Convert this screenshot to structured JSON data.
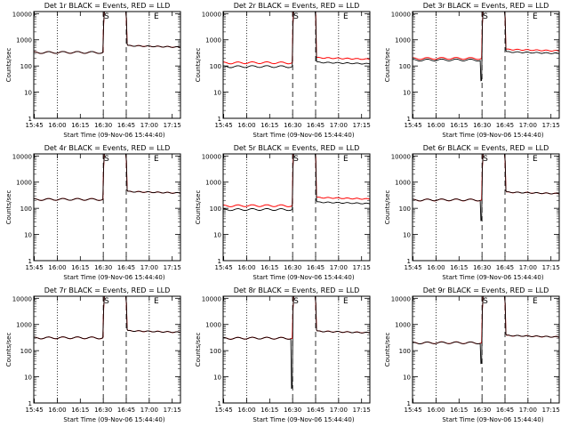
{
  "xlabel": "Start Time (09-Nov-06 15:44:40)",
  "ylabel": "Counts/sec",
  "colors": {
    "events": "#000000",
    "lld": "#ff0000",
    "axis": "#000000"
  },
  "chart_data": [
    {
      "type": "line",
      "title": "Det 1r BLACK = Events, RED = LLD",
      "markers": [
        "S",
        "E"
      ],
      "profile": {
        "pre": 330,
        "post": 520,
        "lldFactor": 1.0,
        "dip": 0
      }
    },
    {
      "type": "line",
      "title": "Det 2r BLACK = Events, RED = LLD",
      "markers": [
        "S",
        "E"
      ],
      "profile": {
        "pre": 95,
        "post": 120,
        "lldFactor": 1.4,
        "dip": 0
      }
    },
    {
      "type": "line",
      "title": "Det 3r BLACK = Events, RED = LLD",
      "markers": [
        "S",
        "E"
      ],
      "profile": {
        "pre": 170,
        "post": 300,
        "lldFactor": 1.15,
        "dip": 1
      }
    },
    {
      "type": "line",
      "title": "Det 4r BLACK = Events, RED = LLD",
      "markers": [
        "S",
        "E"
      ],
      "profile": {
        "pre": 220,
        "post": 380,
        "lldFactor": 1.0,
        "dip": 0
      }
    },
    {
      "type": "line",
      "title": "Det 5r BLACK = Events, RED = LLD",
      "markers": [
        "S",
        "E"
      ],
      "profile": {
        "pre": 90,
        "post": 150,
        "lldFactor": 1.4,
        "dip": 0
      }
    },
    {
      "type": "line",
      "title": "Det 6r BLACK = Events, RED = LLD",
      "markers": [
        "S",
        "E"
      ],
      "profile": {
        "pre": 210,
        "post": 360,
        "lldFactor": 1.0,
        "dip": 1
      }
    },
    {
      "type": "line",
      "title": "Det 7r BLACK = Events, RED = LLD",
      "markers": [
        "S",
        "E"
      ],
      "profile": {
        "pre": 310,
        "post": 500,
        "lldFactor": 1.0,
        "dip": 0
      }
    },
    {
      "type": "line",
      "title": "Det 8r BLACK = Events, RED = LLD",
      "markers": [
        "S",
        "E"
      ],
      "profile": {
        "pre": 300,
        "post": 480,
        "lldFactor": 1.0,
        "dip": 2
      }
    },
    {
      "type": "line",
      "title": "Det 9r BLACK = Events, RED = LLD",
      "markers": [
        "S",
        "E"
      ],
      "profile": {
        "pre": 200,
        "post": 330,
        "lldFactor": 1.0,
        "dip": 1
      }
    }
  ],
  "xticks": [
    "15:45",
    "16:00",
    "16:15",
    "16:30",
    "16:45",
    "17:00",
    "17:15"
  ],
  "xrange": [
    15.744,
    17.34
  ],
  "yticks": [
    "1",
    "10",
    "100",
    "1000",
    "10000"
  ],
  "ylim": [
    1,
    12000
  ],
  "yscale": "log",
  "flare_start": 16.5,
  "flare_end": 16.75
}
